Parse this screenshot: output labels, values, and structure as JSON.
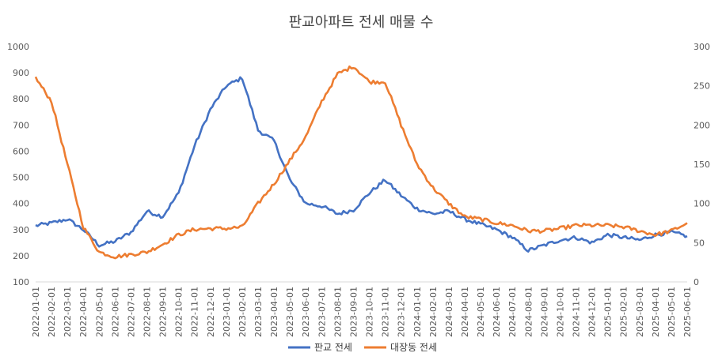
{
  "chart_data": {
    "type": "line",
    "title": "판교아파트 전세 매물 수",
    "left_axis": {
      "min": 100,
      "max": 1000,
      "step": 100
    },
    "right_axis": {
      "min": 0,
      "max": 300,
      "step": 50
    },
    "grid": false,
    "legend_position": "bottom",
    "x": [
      "2022-01-01",
      "2022-02-01",
      "2022-03-01",
      "2022-04-01",
      "2022-05-01",
      "2022-06-01",
      "2022-07-01",
      "2022-08-01",
      "2022-09-01",
      "2022-10-01",
      "2022-11-01",
      "2022-12-01",
      "2023-01-01",
      "2023-02-01",
      "2023-03-01",
      "2023-04-01",
      "2023-05-01",
      "2023-06-01",
      "2023-07-01",
      "2023-08-01",
      "2023-09-01",
      "2023-10-01",
      "2023-11-01",
      "2023-12-01",
      "2024-01-01",
      "2024-02-01",
      "2024-03-01",
      "2024-04-01",
      "2024-05-01",
      "2024-06-01",
      "2024-07-01",
      "2024-08-01",
      "2024-09-01",
      "2024-10-01",
      "2024-11-01",
      "2024-12-01",
      "2025-01-01",
      "2025-02-01",
      "2025-03-01",
      "2025-04-01",
      "2025-05-01",
      "2025-06-01"
    ],
    "series": [
      {
        "name": "판교 전세",
        "axis": "left",
        "color": "#4472C4",
        "values": [
          315,
          325,
          340,
          300,
          240,
          255,
          290,
          370,
          350,
          440,
          620,
          760,
          850,
          880,
          680,
          640,
          490,
          400,
          390,
          360,
          375,
          440,
          490,
          430,
          380,
          360,
          370,
          340,
          320,
          300,
          270,
          220,
          240,
          260,
          270,
          250,
          280,
          270,
          260,
          280,
          290,
          275
        ]
      },
      {
        "name": "대장동 전세",
        "axis": "right",
        "color": "#ED7D31",
        "values": [
          260,
          230,
          150,
          70,
          38,
          32,
          35,
          38,
          48,
          60,
          67,
          68,
          68,
          70,
          100,
          125,
          155,
          185,
          230,
          265,
          275,
          255,
          255,
          200,
          150,
          120,
          100,
          83,
          80,
          75,
          72,
          65,
          65,
          68,
          72,
          72,
          72,
          70,
          65,
          60,
          65,
          75
        ]
      }
    ],
    "x_range": [
      "2022-01-01",
      "2025-06-01"
    ]
  }
}
